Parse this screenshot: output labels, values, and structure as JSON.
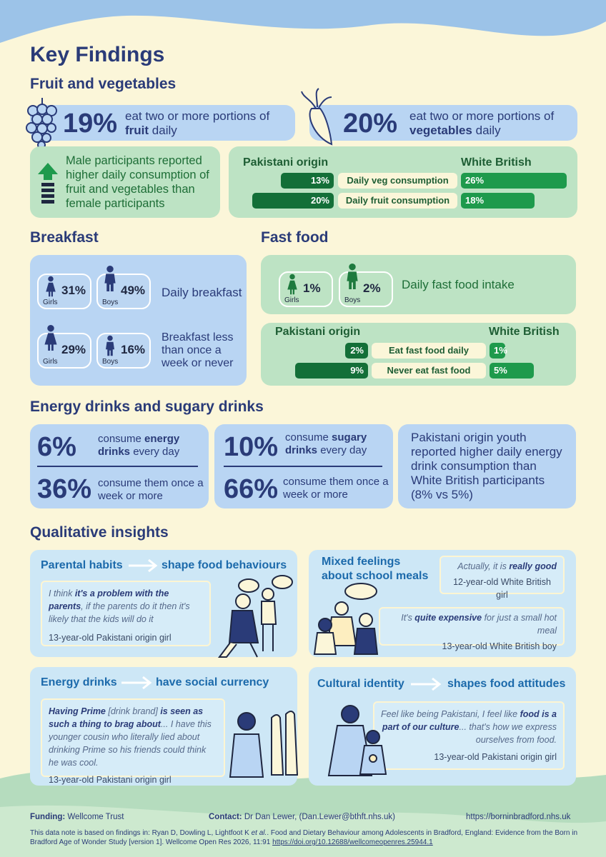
{
  "title": "Key Findings",
  "fruit_veg": {
    "heading": "Fruit and vegetables",
    "fruit": {
      "stat": "19%",
      "text": [
        "eat two or more portions of",
        "fruit",
        "daily"
      ]
    },
    "veg": {
      "stat": "20%",
      "text": [
        "eat two or more portions of",
        "vegetables",
        "daily"
      ]
    },
    "gender_note": "Male participants reported higher daily consumption of  fruit and vegetables than female participants",
    "comparison": {
      "groups": [
        "Pakistani origin",
        "White British"
      ],
      "rows": [
        {
          "label": "Daily veg consumption",
          "pakistani": {
            "value": 13,
            "label": "13%"
          },
          "white_british": {
            "value": 26,
            "label": "26%"
          }
        },
        {
          "label": "Daily fruit consumption",
          "pakistani": {
            "value": 20,
            "label": "20%"
          },
          "white_british": {
            "value": 18,
            "label": "18%"
          }
        }
      ]
    }
  },
  "breakfast": {
    "heading": "Breakfast",
    "groups": [
      "Girls",
      "Boys"
    ],
    "rows": [
      {
        "values": [
          "31%",
          "49%"
        ],
        "label": "Daily breakfast"
      },
      {
        "values": [
          "29%",
          "16%"
        ],
        "label": "Breakfast less than once a week or never"
      }
    ]
  },
  "fast_food": {
    "heading": "Fast food",
    "groups": [
      "Girls",
      "Boys"
    ],
    "values": [
      "1%",
      "2%"
    ],
    "label": "Daily fast food intake",
    "comparison": {
      "groups": [
        "Pakistani origin",
        "White British"
      ],
      "rows": [
        {
          "label": "Eat fast food daily",
          "pakistani": {
            "value": 2,
            "label": "2%"
          },
          "white_british": {
            "value": 1,
            "label": "1%"
          }
        },
        {
          "label": "Never eat fast food",
          "pakistani": {
            "value": 9,
            "label": "9%"
          },
          "white_british": {
            "value": 5,
            "label": "5%"
          }
        }
      ]
    }
  },
  "drinks": {
    "heading": "Energy drinks and sugary drinks",
    "energy": {
      "daily_stat": "6%",
      "daily_text": [
        "consume",
        "energy drinks",
        "every day"
      ],
      "weekly_stat": "36%",
      "weekly_text": "consume them once a week or more"
    },
    "sugary": {
      "daily_stat": "10%",
      "daily_text": [
        "consume",
        "sugary drinks",
        "every day"
      ],
      "weekly_stat": "66%",
      "weekly_text": "consume them once a week or more"
    },
    "note": "Pakistani origin youth reported higher daily energy drink consumption than White British participants (8% vs 5%)"
  },
  "qualitative": {
    "heading": "Qualitative insights",
    "panels": [
      {
        "title": [
          "Parental habits",
          "shape food behaviours"
        ],
        "quotes": [
          {
            "text": [
              "I think ",
              "it's a problem with the parents",
              ", if the parents do it then it's likely that the kids will do it"
            ],
            "attribution": "13-year-old Pakistani origin girl"
          }
        ]
      },
      {
        "title": [
          "Mixed feelings about school meals"
        ],
        "quotes": [
          {
            "text": [
              "Actually, it is ",
              "really good"
            ],
            "attribution": "12-year-old White British girl"
          },
          {
            "text": [
              "It's ",
              "quite expensive",
              " for just a small hot meal"
            ],
            "attribution": "13-year-old White British boy"
          }
        ]
      },
      {
        "title": [
          "Energy drinks",
          "have social currency"
        ],
        "quotes": [
          {
            "text": [
              "Having Prime",
              " [drink brand] ",
              "is seen as such a thing to brag about",
              "... I have this younger cousin who literally lied about drinking Prime so his friends could think he was cool."
            ],
            "attribution": "13-year-old Pakistani origin girl"
          }
        ]
      },
      {
        "title": [
          "Cultural identity",
          "shapes food attitudes"
        ],
        "quotes": [
          {
            "text": [
              "Feel like being Pakistani, I feel like ",
              "food is a part of our culture",
              "... that's how we express ourselves from food."
            ],
            "attribution": "13-year-old Pakistani origin girl"
          }
        ]
      }
    ]
  },
  "footer": {
    "funding": [
      "Funding:",
      "Wellcome Trust"
    ],
    "contact": [
      "Contact:",
      "Dr Dan Lewer, (Dan.Lewer@bthft.nhs.uk)"
    ],
    "url": "https://borninbradford.nhs.uk",
    "citation": [
      "This data note is based on findings in: Ryan D, Dowling L, Lightfoot K ",
      "et al.",
      ". Food and Dietary Behaviour among Adolescents in Bradford, England: Evidence from the Born in Bradford Age of Wonder Study [version 1]. Wellcome Open Res 2026, 11:91 ",
      "https://doi.org/10.12688/wellcomeopenres.25944.1"
    ]
  }
}
